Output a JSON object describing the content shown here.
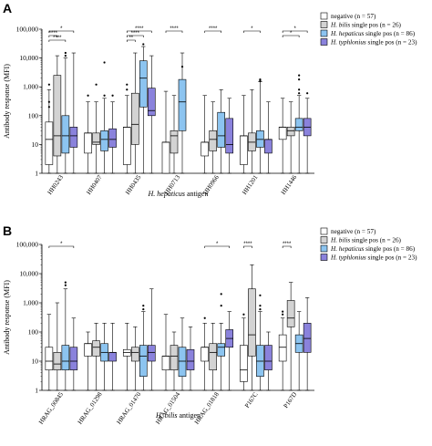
{
  "figure": {
    "colors": {
      "negative": "#ffffff",
      "bilis": "#d3d3d3",
      "hepaticus": "#8cc4f0",
      "typhlonius": "#8a82dc"
    }
  },
  "chart_data": [
    {
      "panel": "A",
      "type": "boxplot",
      "ylabel": "Antibody response (MFI)",
      "xlabel_italic": "H. hepaticus",
      "xlabel_rest": " antigen",
      "yscale": "log",
      "ylim": [
        1,
        100000
      ],
      "ytick_labels": [
        "1",
        "10",
        "100",
        "1,000",
        "10,000",
        "100,000"
      ],
      "legend": [
        {
          "key": "negative",
          "prefix": "",
          "italic": "",
          "text": "negative (n = 57)"
        },
        {
          "key": "bilis",
          "prefix": "",
          "italic": "H. bilis",
          "text": " single pos (n = 26)"
        },
        {
          "key": "hepaticus",
          "prefix": "",
          "italic": "H. hepaticus",
          "text": " single pos (n = 86)"
        },
        {
          "key": "typhlonius",
          "prefix": "",
          "italic": "H. typhlonius",
          "text": " single pos (n = 23)"
        }
      ],
      "categories": [
        "HH0243",
        "HH0407",
        "HH0435",
        "HH0713",
        "HH0966",
        "HH1201",
        "HH1446"
      ],
      "groups": [
        {
          "category": "HH0243",
          "boxes": [
            {
              "series": "negative",
              "min": 1,
              "q1": 2,
              "median": 15,
              "q3": 60,
              "max": 800,
              "outliers": [
                200,
                300,
                1200
              ]
            },
            {
              "series": "bilis",
              "min": 1,
              "q1": 4,
              "median": 20,
              "q3": 2500,
              "max": 12000,
              "outliers": []
            },
            {
              "series": "hepaticus",
              "min": 1,
              "q1": 5,
              "median": 20,
              "q3": 100,
              "max": 10000,
              "outliers": [
                12000,
                15000
              ]
            },
            {
              "series": "typhlonius",
              "min": 1,
              "q1": 8,
              "median": 20,
              "q3": 40,
              "max": 15000,
              "outliers": []
            }
          ]
        },
        {
          "category": "HH0407",
          "boxes": [
            {
              "series": "negative",
              "min": 1,
              "q1": 5,
              "median": 25,
              "q3": 25,
              "max": 300,
              "outliers": [
                500
              ]
            },
            {
              "series": "bilis",
              "min": 1,
              "q1": 10,
              "median": 12,
              "q3": 25,
              "max": 300,
              "outliers": [
                1200
              ]
            },
            {
              "series": "hepaticus",
              "min": 1,
              "q1": 6,
              "median": 15,
              "q3": 30,
              "max": 400,
              "outliers": [
                500,
                7000
              ]
            },
            {
              "series": "typhlonius",
              "min": 1,
              "q1": 8,
              "median": 15,
              "q3": 35,
              "max": 300,
              "outliers": [
                500
              ]
            }
          ]
        },
        {
          "category": "HH0435",
          "boxes": [
            {
              "series": "negative",
              "min": 1,
              "q1": 2,
              "median": 40,
              "q3": 40,
              "max": 500,
              "outliers": [
                800,
                1200
              ]
            },
            {
              "series": "bilis",
              "min": 1,
              "q1": 10,
              "median": 50,
              "q3": 600,
              "max": 15000,
              "outliers": []
            },
            {
              "series": "hepaticus",
              "min": 1,
              "q1": 200,
              "median": 2000,
              "q3": 8000,
              "max": 25000,
              "outliers": [
                30000
              ]
            },
            {
              "series": "typhlonius",
              "min": 1,
              "q1": 100,
              "median": 150,
              "q3": 900,
              "max": 12000,
              "outliers": []
            }
          ]
        },
        {
          "category": "HH0713",
          "boxes": [
            {
              "series": "negative",
              "min": 1,
              "q1": 1,
              "median": 12,
              "q3": 12,
              "max": 700,
              "outliers": []
            },
            {
              "series": "bilis",
              "min": 1,
              "q1": 5,
              "median": 20,
              "q3": 30,
              "max": 500,
              "outliers": []
            },
            {
              "series": "hepaticus",
              "min": 1,
              "q1": 30,
              "median": 300,
              "q3": 1800,
              "max": 15000,
              "outliers": [
                5000
              ]
            }
          ]
        },
        {
          "category": "HH0966",
          "boxes": [
            {
              "series": "negative",
              "min": 1,
              "q1": 4,
              "median": 12,
              "q3": 12,
              "max": 500,
              "outliers": []
            },
            {
              "series": "bilis",
              "min": 1,
              "q1": 6,
              "median": 15,
              "q3": 30,
              "max": 300,
              "outliers": []
            },
            {
              "series": "hepaticus",
              "min": 1,
              "q1": 8,
              "median": 20,
              "q3": 130,
              "max": 800,
              "outliers": []
            },
            {
              "series": "typhlonius",
              "min": 1,
              "q1": 5,
              "median": 10,
              "q3": 80,
              "max": 400,
              "outliers": []
            }
          ]
        },
        {
          "category": "HH1201",
          "boxes": [
            {
              "series": "negative",
              "min": 1,
              "q1": 2,
              "median": 20,
              "q3": 20,
              "max": 500,
              "outliers": []
            },
            {
              "series": "bilis",
              "min": 1,
              "q1": 6,
              "median": 12,
              "q3": 25,
              "max": 800,
              "outliers": []
            },
            {
              "series": "hepaticus",
              "min": 1,
              "q1": 8,
              "median": 15,
              "q3": 30,
              "max": 1500,
              "outliers": [
                1600,
                1800
              ]
            },
            {
              "series": "typhlonius",
              "min": 1,
              "q1": 5,
              "median": 15,
              "q3": 15,
              "max": 300,
              "outliers": []
            }
          ]
        },
        {
          "category": "HH1446",
          "boxes": [
            {
              "series": "negative",
              "min": 1,
              "q1": 15,
              "median": 40,
              "q3": 40,
              "max": 400,
              "outliers": []
            },
            {
              "series": "bilis",
              "min": 1,
              "q1": 20,
              "median": 30,
              "q3": 40,
              "max": 300,
              "outliers": []
            },
            {
              "series": "hepaticus",
              "min": 1,
              "q1": 30,
              "median": 40,
              "q3": 80,
              "max": 500,
              "outliers": [
                600,
                800,
                1800,
                2500
              ]
            },
            {
              "series": "typhlonius",
              "min": 1,
              "q1": 20,
              "median": 40,
              "q3": 80,
              "max": 400,
              "outliers": [
                600
              ]
            }
          ]
        }
      ],
      "significance": [
        {
          "cat": "HH0243",
          "from": 0,
          "to": 3,
          "level": 0,
          "label": "*"
        },
        {
          "cat": "HH0243",
          "from": 0,
          "to": 1,
          "level": 1,
          "label": "****"
        },
        {
          "cat": "HH0243",
          "from": 0,
          "to": 2,
          "level": 2,
          "label": "****"
        },
        {
          "cat": "HH0435",
          "from": 0,
          "to": 3,
          "level": 0,
          "label": "****"
        },
        {
          "cat": "HH0435",
          "from": 0,
          "to": 2,
          "level": 1,
          "label": "****"
        },
        {
          "cat": "HH0435",
          "from": 0,
          "to": 1,
          "level": 2,
          "label": "**"
        },
        {
          "cat": "HH0713",
          "from": 0,
          "to": 2,
          "level": 0,
          "label": "****"
        },
        {
          "cat": "HH0966",
          "from": 0,
          "to": 2,
          "level": 0,
          "label": "****"
        },
        {
          "cat": "HH1201",
          "from": 0,
          "to": 2,
          "level": 0,
          "label": "*"
        },
        {
          "cat": "HH1446",
          "from": 0,
          "to": 3,
          "level": 0,
          "label": "*"
        },
        {
          "cat": "HH1446",
          "from": 0,
          "to": 2,
          "level": 1,
          "label": "*"
        }
      ]
    },
    {
      "panel": "B",
      "type": "boxplot",
      "ylabel": "Antibody response (MFI)",
      "xlabel_italic": "H. bilis",
      "xlabel_rest": " antigen",
      "yscale": "log",
      "ylim": [
        1,
        100000
      ],
      "ytick_labels": [
        "1",
        "10",
        "100",
        "1,000",
        "10,000",
        "100,000"
      ],
      "legend": [
        {
          "key": "negative",
          "prefix": "",
          "italic": "",
          "text": "negative (n = 57)"
        },
        {
          "key": "bilis",
          "prefix": "",
          "italic": "H. bilis",
          "text": " single pos (n = 26)"
        },
        {
          "key": "hepaticus",
          "prefix": "",
          "italic": "H. hepaticus",
          "text": " single pos (n = 86)"
        },
        {
          "key": "typhlonius",
          "prefix": "",
          "italic": "H. typhlonius",
          "text": " single pos (n = 23)"
        }
      ],
      "categories": [
        "HRAG_00845",
        "HRAG_01298",
        "HRAG_01470",
        "HRAG_01504",
        "HRAG_01818",
        "P167C",
        "P167D"
      ],
      "groups": [
        {
          "category": "HRAG_00845",
          "boxes": [
            {
              "series": "negative",
              "min": 1,
              "q1": 5,
              "median": 10,
              "q3": 30,
              "max": 400,
              "outliers": []
            },
            {
              "series": "bilis",
              "min": 1,
              "q1": 5,
              "median": 8,
              "q3": 20,
              "max": 1000,
              "outliers": []
            },
            {
              "series": "hepaticus",
              "min": 1,
              "q1": 5,
              "median": 10,
              "q3": 35,
              "max": 3000,
              "outliers": [
                4000,
                5000
              ]
            },
            {
              "series": "typhlonius",
              "min": 1,
              "q1": 5,
              "median": 10,
              "q3": 30,
              "max": 300,
              "outliers": []
            }
          ]
        },
        {
          "category": "HRAG_01298",
          "boxes": [
            {
              "series": "negative",
              "min": 1,
              "q1": 15,
              "median": 40,
              "q3": 40,
              "max": 100,
              "outliers": []
            },
            {
              "series": "bilis",
              "min": 1,
              "q1": 15,
              "median": 30,
              "q3": 50,
              "max": 200,
              "outliers": []
            },
            {
              "series": "hepaticus",
              "min": 1,
              "q1": 10,
              "median": 20,
              "q3": 40,
              "max": 200,
              "outliers": []
            },
            {
              "series": "typhlonius",
              "min": 1,
              "q1": 10,
              "median": 20,
              "q3": 20,
              "max": 200,
              "outliers": []
            }
          ]
        },
        {
          "category": "HRAG_01470",
          "boxes": [
            {
              "series": "negative",
              "min": 1,
              "q1": 15,
              "median": 20,
              "q3": 25,
              "max": 200,
              "outliers": []
            },
            {
              "series": "bilis",
              "min": 1,
              "q1": 10,
              "median": 20,
              "q3": 30,
              "max": 150,
              "outliers": []
            },
            {
              "series": "hepaticus",
              "min": 1,
              "q1": 3,
              "median": 15,
              "q3": 35,
              "max": 500,
              "outliers": [
                600,
                800
              ]
            },
            {
              "series": "typhlonius",
              "min": 1,
              "q1": 10,
              "median": 20,
              "q3": 35,
              "max": 3000,
              "outliers": []
            }
          ]
        },
        {
          "category": "HRAG_01504",
          "boxes": [
            {
              "series": "negative",
              "min": 1,
              "q1": 5,
              "median": 15,
              "q3": 15,
              "max": 400,
              "outliers": []
            },
            {
              "series": "bilis",
              "min": 1,
              "q1": 5,
              "median": 15,
              "q3": 35,
              "max": 100,
              "outliers": []
            },
            {
              "series": "hepaticus",
              "min": 1,
              "q1": 3,
              "median": 10,
              "q3": 30,
              "max": 300,
              "outliers": []
            },
            {
              "series": "typhlonius",
              "min": 1,
              "q1": 5,
              "median": 10,
              "q3": 25,
              "max": 150,
              "outliers": []
            }
          ]
        },
        {
          "category": "HRAG_01818",
          "boxes": [
            {
              "series": "negative",
              "min": 1,
              "q1": 10,
              "median": 30,
              "q3": 30,
              "max": 200,
              "outliers": [
                300
              ]
            },
            {
              "series": "bilis",
              "min": 1,
              "q1": 5,
              "median": 20,
              "q3": 40,
              "max": 200,
              "outliers": []
            },
            {
              "series": "hepaticus",
              "min": 1,
              "q1": 15,
              "median": 30,
              "q3": 40,
              "max": 200,
              "outliers": [
                800,
                2000
              ]
            },
            {
              "series": "typhlonius",
              "min": 1,
              "q1": 30,
              "median": 60,
              "q3": 120,
              "max": 500,
              "outliers": []
            }
          ]
        },
        {
          "category": "P167C",
          "boxes": [
            {
              "series": "negative",
              "min": 1,
              "q1": 2,
              "median": 5,
              "q3": 35,
              "max": 300,
              "outliers": [
                400
              ]
            },
            {
              "series": "bilis",
              "min": 1,
              "q1": 15,
              "median": 80,
              "q3": 3000,
              "max": 20000,
              "outliers": []
            },
            {
              "series": "hepaticus",
              "min": 1,
              "q1": 3,
              "median": 10,
              "q3": 35,
              "max": 500,
              "outliers": [
                600,
                800,
                1800
              ]
            },
            {
              "series": "typhlonius",
              "min": 1,
              "q1": 5,
              "median": 10,
              "q3": 35,
              "max": 100,
              "outliers": []
            }
          ]
        },
        {
          "category": "P167D",
          "boxes": [
            {
              "series": "negative",
              "min": 1,
              "q1": 10,
              "median": 30,
              "q3": 80,
              "max": 300,
              "outliers": [
                400,
                500
              ]
            },
            {
              "series": "bilis",
              "min": 1,
              "q1": 150,
              "median": 300,
              "q3": 1200,
              "max": 5000,
              "outliers": []
            },
            {
              "series": "hepaticus",
              "min": 1,
              "q1": 20,
              "median": 40,
              "q3": 80,
              "max": 500,
              "outliers": []
            },
            {
              "series": "typhlonius",
              "min": 1,
              "q1": 20,
              "median": 60,
              "q3": 200,
              "max": 1500,
              "outliers": []
            }
          ]
        }
      ],
      "significance": [
        {
          "cat": "HRAG_00845",
          "from": 0,
          "to": 3,
          "level": 0,
          "label": "*"
        },
        {
          "cat": "HRAG_01818",
          "from": 0,
          "to": 3,
          "level": 0,
          "label": "*"
        },
        {
          "cat": "P167C",
          "from": 0,
          "to": 1,
          "level": 0,
          "label": "****"
        },
        {
          "cat": "P167D",
          "from": 0,
          "to": 1,
          "level": 0,
          "label": "****"
        }
      ]
    }
  ]
}
